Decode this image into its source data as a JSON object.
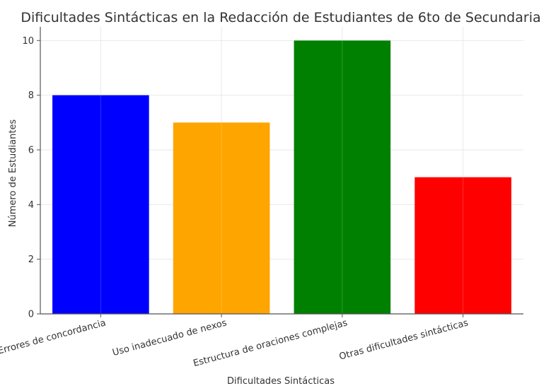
{
  "chart_data": {
    "type": "bar",
    "title": "Dificultades Sintácticas en la Redacción de Estudiantes de 6to de Secundaria",
    "xlabel": "Dificultades Sintácticas",
    "ylabel": "Número de Estudiantes",
    "categories": [
      "Errores de concordancia",
      "Uso inadecuado de nexos",
      "Estructura de oraciones complejas",
      "Otras dificultades sintácticas"
    ],
    "values": [
      8,
      7,
      10,
      5
    ],
    "colors": [
      "#0000ff",
      "#ffa500",
      "#008000",
      "#ff0000"
    ],
    "ylim": [
      0,
      10.5
    ],
    "yticks": [
      0,
      2,
      4,
      6,
      8,
      10
    ],
    "grid": true
  }
}
